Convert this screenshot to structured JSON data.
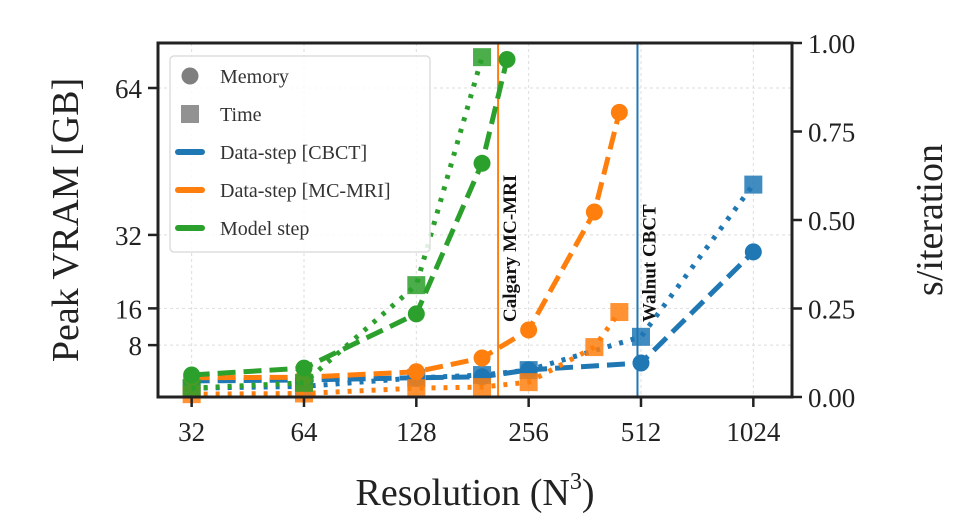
{
  "chart_data": {
    "type": "line",
    "xlabel": "Resolution (N",
    "xlabel_sup": "3",
    "xlabel_close": ")",
    "ylabel_left": "Peak VRAM [GB]",
    "ylabel_right": "s/iteration",
    "x_scale": "log2",
    "xlim": [
      26,
      1300
    ],
    "x_ticks": [
      32,
      64,
      128,
      256,
      512,
      1024
    ],
    "x_tick_labels": [
      "32",
      "64",
      "128",
      "256",
      "512",
      "1024"
    ],
    "ylim_left": [
      -3.3,
      73.8
    ],
    "y_ticks_left": [
      8,
      16,
      32,
      64
    ],
    "y_tick_labels_left": [
      "8",
      "16",
      "32",
      "64"
    ],
    "ylim_right": [
      0,
      1
    ],
    "y_ticks_right": [
      0,
      0.25,
      0.5,
      0.75,
      1.0
    ],
    "y_tick_labels_right": [
      "0.00",
      "0.25",
      "0.50",
      "0.75",
      "1.00"
    ],
    "grid": true,
    "legend_placement": "top-left",
    "legend": [
      {
        "label": "Memory",
        "kind": "marker-circle",
        "color": "#7f7f7f"
      },
      {
        "label": "Time",
        "kind": "marker-square",
        "color": "#7f7f7f"
      },
      {
        "label": "Data-step [CBCT]",
        "kind": "line",
        "color": "#1f77b4"
      },
      {
        "label": "Data-step [MC-MRI]",
        "kind": "line",
        "color": "#ff7f0e"
      },
      {
        "label": "Model step",
        "kind": "line",
        "color": "#2ca02c"
      }
    ],
    "series": [
      {
        "name": "Data-step [CBCT]",
        "metric": "Memory",
        "axis": "left",
        "style": "dashed",
        "marker": "circle",
        "color": "#1f77b4",
        "x": [
          32,
          64,
          128,
          192,
          256,
          512,
          1024
        ],
        "y": [
          0.2,
          0.4,
          0.9,
          1.1,
          2.6,
          4.1,
          28.3
        ]
      },
      {
        "name": "Data-step [CBCT]",
        "metric": "Time",
        "axis": "right",
        "style": "dotted",
        "marker": "square",
        "color": "#1f77b4",
        "x": [
          32,
          64,
          128,
          192,
          256,
          512,
          1024
        ],
        "y": [
          0.025,
          0.03,
          0.054,
          0.062,
          0.076,
          0.17,
          0.6
        ]
      },
      {
        "name": "Data-step [MC-MRI]",
        "metric": "Memory",
        "axis": "left",
        "style": "dashed",
        "marker": "circle",
        "color": "#ff7f0e",
        "x": [
          32,
          64,
          128,
          192,
          256,
          384,
          448
        ],
        "y": [
          0.9,
          1.0,
          2.2,
          5.2,
          11.3,
          37,
          58.7
        ]
      },
      {
        "name": "Data-step [MC-MRI]",
        "metric": "Time",
        "axis": "right",
        "style": "dotted",
        "marker": "square",
        "color": "#ff7f0e",
        "x": [
          32,
          64,
          128,
          192,
          256,
          384,
          448
        ],
        "y": [
          0.008,
          0.01,
          0.025,
          0.028,
          0.042,
          0.141,
          0.24
        ]
      },
      {
        "name": "Model step",
        "metric": "Memory",
        "axis": "left",
        "style": "dashed",
        "marker": "circle",
        "color": "#2ca02c",
        "x": [
          32,
          64,
          128,
          192,
          224
        ],
        "y": [
          1.5,
          3.0,
          14.8,
          47.6,
          70.2
        ]
      },
      {
        "name": "Model step",
        "metric": "Time",
        "axis": "right",
        "style": "dotted",
        "marker": "square",
        "color": "#2ca02c",
        "x": [
          32,
          64,
          128,
          192
        ],
        "y": [
          0.025,
          0.04,
          0.316,
          0.96
        ]
      }
    ],
    "vlines": [
      {
        "x": 212,
        "label": "Calgary MC-MRI",
        "color": "#ff7f0e"
      },
      {
        "x": 501,
        "label": "Walnut CBCT",
        "color": "#1f77b4"
      }
    ]
  }
}
